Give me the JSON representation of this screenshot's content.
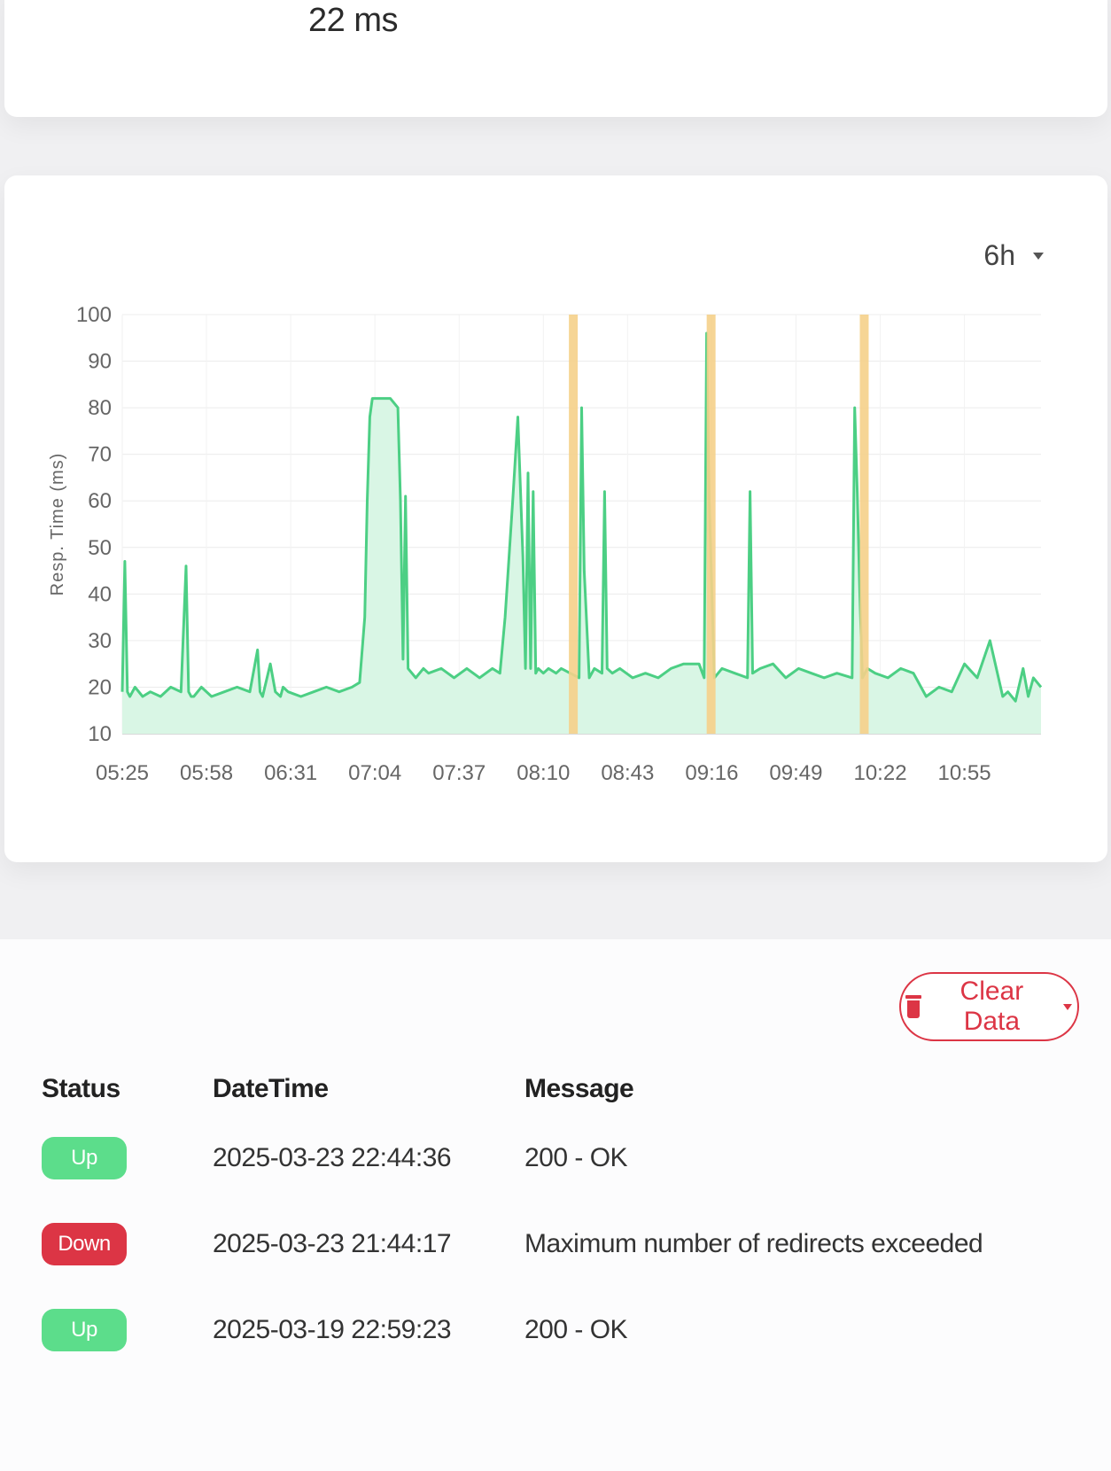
{
  "stat": {
    "value": "22 ms"
  },
  "chart_controls": {
    "range": "6h"
  },
  "chart_data": {
    "type": "area",
    "title": "",
    "ylabel": "Resp. Time (ms)",
    "ylim": [
      10,
      100
    ],
    "y_ticks": [
      "10",
      "20",
      "30",
      "40",
      "50",
      "60",
      "70",
      "80",
      "90",
      "100"
    ],
    "x_ticks": [
      "05:25",
      "05:58",
      "06:31",
      "07:04",
      "07:37",
      "08:10",
      "08:43",
      "09:16",
      "09:49",
      "10:22",
      "10:55"
    ],
    "x_start": "05:25",
    "x_end": "11:25",
    "grid": true,
    "colors": {
      "line": "#4ccf84",
      "fill": "#d9f6e5",
      "downtime": "#f5d08a"
    },
    "series": [
      {
        "x": [
          "05:25",
          "05:26",
          "05:27",
          "05:28",
          "05:30",
          "05:33",
          "05:36",
          "05:40",
          "05:44",
          "05:48",
          "05:50",
          "05:51",
          "05:52",
          "05:53",
          "05:56",
          "06:00",
          "06:05",
          "06:10",
          "06:15",
          "06:18",
          "06:19",
          "06:20",
          "06:23",
          "06:25",
          "06:27",
          "06:28",
          "06:30",
          "06:35",
          "06:40",
          "06:45",
          "06:50",
          "06:55",
          "06:58",
          "07:00",
          "07:01",
          "07:02",
          "07:03",
          "07:05",
          "07:10",
          "07:13",
          "07:14",
          "07:15",
          "07:16",
          "07:17",
          "07:20",
          "07:23",
          "07:25",
          "07:30",
          "07:35",
          "07:40",
          "07:45",
          "07:50",
          "07:53",
          "07:55",
          "07:58",
          "08:00",
          "08:02",
          "08:03",
          "08:04",
          "08:05",
          "08:06",
          "08:07",
          "08:08",
          "08:10",
          "08:12",
          "08:15",
          "08:17",
          "08:24",
          "08:25",
          "08:26",
          "08:28",
          "08:30",
          "08:33",
          "08:34",
          "08:35",
          "08:37",
          "08:40",
          "08:45",
          "08:50",
          "08:55",
          "09:00",
          "09:05",
          "09:11",
          "09:13",
          "09:14",
          "09:15",
          "09:17",
          "09:20",
          "09:25",
          "09:30",
          "09:31",
          "09:32",
          "09:35",
          "09:40",
          "09:45",
          "09:50",
          "09:55",
          "10:00",
          "10:05",
          "10:11",
          "10:12",
          "10:13",
          "10:14",
          "10:15",
          "10:17",
          "10:20",
          "10:25",
          "10:30",
          "10:35",
          "10:40",
          "10:45",
          "10:50",
          "10:55",
          "11:00",
          "11:05",
          "11:10",
          "11:12",
          "11:15",
          "11:18",
          "11:20",
          "11:22",
          "11:25"
        ],
        "y": [
          19,
          47,
          19,
          18,
          20,
          18,
          19,
          18,
          20,
          19,
          46,
          19,
          18,
          18,
          20,
          18,
          19,
          20,
          19,
          28,
          19,
          18,
          25,
          19,
          18,
          20,
          19,
          18,
          19,
          20,
          19,
          20,
          21,
          35,
          60,
          78,
          82,
          82,
          82,
          80,
          60,
          26,
          61,
          24,
          22,
          24,
          23,
          24,
          22,
          24,
          22,
          24,
          23,
          35,
          60,
          78,
          48,
          24,
          66,
          24,
          62,
          23,
          24,
          23,
          24,
          23,
          24,
          22,
          80,
          45,
          22,
          24,
          23,
          62,
          24,
          23,
          24,
          22,
          23,
          22,
          24,
          25,
          25,
          22,
          96,
          60,
          22,
          24,
          23,
          22,
          62,
          23,
          24,
          25,
          22,
          24,
          23,
          22,
          23,
          22,
          80,
          62,
          40,
          22,
          24,
          23,
          22,
          24,
          23,
          18,
          20,
          19,
          25,
          22,
          30,
          18,
          19,
          17,
          24,
          18,
          22,
          20
        ]
      }
    ],
    "downtime_bands": [
      [
        "08:20",
        "08:23"
      ],
      [
        "09:14",
        "09:16"
      ],
      [
        "10:14",
        "10:16"
      ]
    ]
  },
  "actions": {
    "clear_data": "Clear Data"
  },
  "events_table": {
    "headers": [
      "Status",
      "DateTime",
      "Message"
    ],
    "rows": [
      {
        "status": "Up",
        "kind": "up",
        "datetime": "2025-03-23 22:44:36",
        "message": "200 - OK"
      },
      {
        "status": "Down",
        "kind": "down",
        "datetime": "2025-03-23 21:44:17",
        "message": "Maximum number of redirects exceeded"
      },
      {
        "status": "Up",
        "kind": "up",
        "datetime": "2025-03-19 22:59:23",
        "message": "200 - OK"
      }
    ]
  }
}
